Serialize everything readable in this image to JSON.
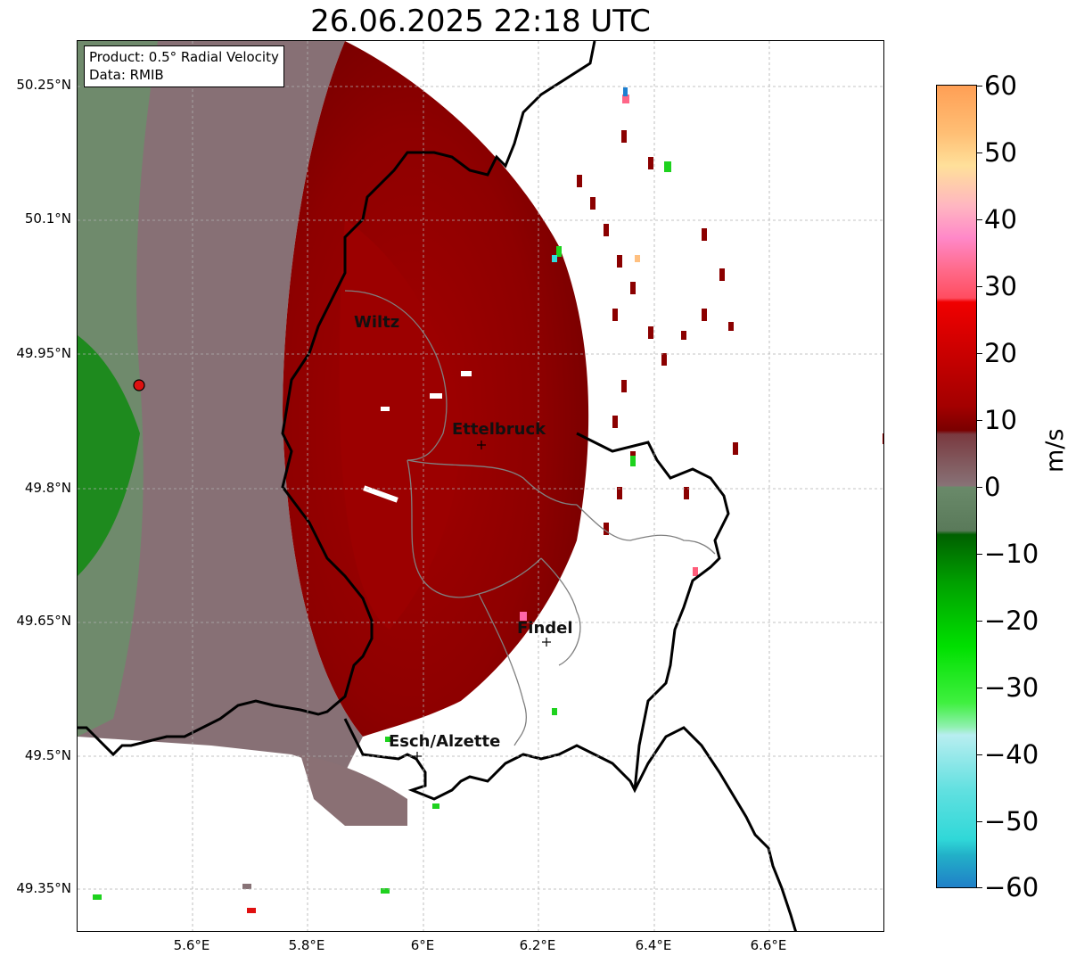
{
  "title": "26.06.2025 22:18 UTC",
  "info": {
    "product": "Product: 0.5° Radial Velocity",
    "data": "Data: RMIB"
  },
  "latitude_labels": [
    "50.25°N",
    "50.1°N",
    "49.95°N",
    "49.8°N",
    "49.65°N",
    "49.5°N",
    "49.35°N"
  ],
  "longitude_labels": [
    "5.6°E",
    "5.8°E",
    "6°E",
    "6.2°E",
    "6.4°E",
    "6.6°E"
  ],
  "cities": [
    "Wiltz",
    "Ettelbruck",
    "Findel",
    "Esch/Alzette"
  ],
  "colorbar": {
    "unit": "m/s",
    "ticks": [
      "60",
      "50",
      "40",
      "30",
      "20",
      "10",
      "0",
      "−10",
      "−20",
      "−30",
      "−40",
      "−50",
      "−60"
    ],
    "range": [
      -60,
      60
    ]
  },
  "colors": {
    "receding_dark_red": "#8b0000",
    "approaching_green": "#1a7a1a",
    "near_zero_grey": "#887377",
    "radar_marker": "#dd1111"
  }
}
